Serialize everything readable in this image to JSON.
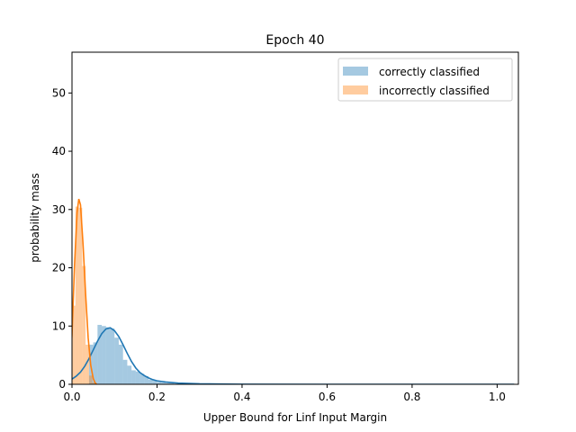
{
  "chart_data": {
    "type": "bar",
    "title": "Epoch  40",
    "xlabel": "Upper Bound for Linf Input Margin",
    "ylabel": "probability mass",
    "xlim": [
      0.0,
      1.05
    ],
    "ylim": [
      0,
      57
    ],
    "xticks": [
      0.0,
      0.2,
      0.4,
      0.6,
      0.8,
      1.0
    ],
    "xtick_labels": [
      "0.0",
      "0.2",
      "0.4",
      "0.6",
      "0.8",
      "1.0"
    ],
    "yticks": [
      0,
      10,
      20,
      30,
      40,
      50
    ],
    "ytick_labels": [
      "0",
      "10",
      "20",
      "30",
      "40",
      "50"
    ],
    "grid": false,
    "legend_position": "top-right",
    "series": [
      {
        "name": "correctly classified",
        "color": "#1f77b4",
        "bin_width": 0.01,
        "bins": [
          [
            0.04,
            6.8
          ],
          [
            0.05,
            7.2
          ],
          [
            0.06,
            10.2
          ],
          [
            0.07,
            10.0
          ],
          [
            0.08,
            9.8
          ],
          [
            0.09,
            9.6
          ],
          [
            0.1,
            8.0
          ],
          [
            0.11,
            6.8
          ],
          [
            0.12,
            4.2
          ],
          [
            0.13,
            3.2
          ],
          [
            0.14,
            2.4
          ],
          [
            0.15,
            2.2
          ],
          [
            0.16,
            1.8
          ],
          [
            0.17,
            1.4
          ],
          [
            0.18,
            0.8
          ],
          [
            0.19,
            0.6
          ],
          [
            0.2,
            0.4
          ],
          [
            0.21,
            0.3
          ],
          [
            0.22,
            0.2
          ],
          [
            0.23,
            0.2
          ],
          [
            0.25,
            0.1
          ],
          [
            0.27,
            0.1
          ],
          [
            0.3,
            0.05
          ],
          [
            0.35,
            0.05
          ]
        ],
        "kde": [
          [
            0.0,
            0.9
          ],
          [
            0.01,
            1.4
          ],
          [
            0.02,
            2.1
          ],
          [
            0.03,
            3.1
          ],
          [
            0.04,
            4.4
          ],
          [
            0.05,
            5.9
          ],
          [
            0.06,
            7.4
          ],
          [
            0.07,
            8.7
          ],
          [
            0.08,
            9.5
          ],
          [
            0.09,
            9.7
          ],
          [
            0.1,
            9.2
          ],
          [
            0.11,
            8.2
          ],
          [
            0.12,
            6.8
          ],
          [
            0.13,
            5.3
          ],
          [
            0.14,
            3.9
          ],
          [
            0.15,
            2.8
          ],
          [
            0.16,
            2.0
          ],
          [
            0.17,
            1.5
          ],
          [
            0.18,
            1.1
          ],
          [
            0.19,
            0.8
          ],
          [
            0.2,
            0.6
          ],
          [
            0.22,
            0.4
          ],
          [
            0.25,
            0.2
          ],
          [
            0.3,
            0.08
          ],
          [
            0.4,
            0.02
          ],
          [
            0.6,
            0.0
          ],
          [
            0.8,
            0.0
          ],
          [
            1.04,
            0.0
          ]
        ]
      },
      {
        "name": "incorrectly classified",
        "color": "#ff7f0e",
        "bin_width": 0.008,
        "bins": [
          [
            0.0,
            13.5
          ],
          [
            0.008,
            30.5
          ],
          [
            0.016,
            30.3
          ],
          [
            0.024,
            20.3
          ],
          [
            0.032,
            6.8
          ],
          [
            0.04,
            1.5
          ],
          [
            0.048,
            0.3
          ]
        ],
        "kde": [
          [
            -0.012,
            0.0
          ],
          [
            -0.006,
            2.0
          ],
          [
            0.0,
            8.5
          ],
          [
            0.006,
            20.5
          ],
          [
            0.012,
            29.5
          ],
          [
            0.016,
            31.8
          ],
          [
            0.02,
            30.8
          ],
          [
            0.026,
            24.0
          ],
          [
            0.032,
            15.5
          ],
          [
            0.038,
            8.0
          ],
          [
            0.044,
            3.3
          ],
          [
            0.05,
            1.0
          ],
          [
            0.054,
            0.3
          ],
          [
            0.058,
            0.0
          ]
        ]
      }
    ]
  }
}
